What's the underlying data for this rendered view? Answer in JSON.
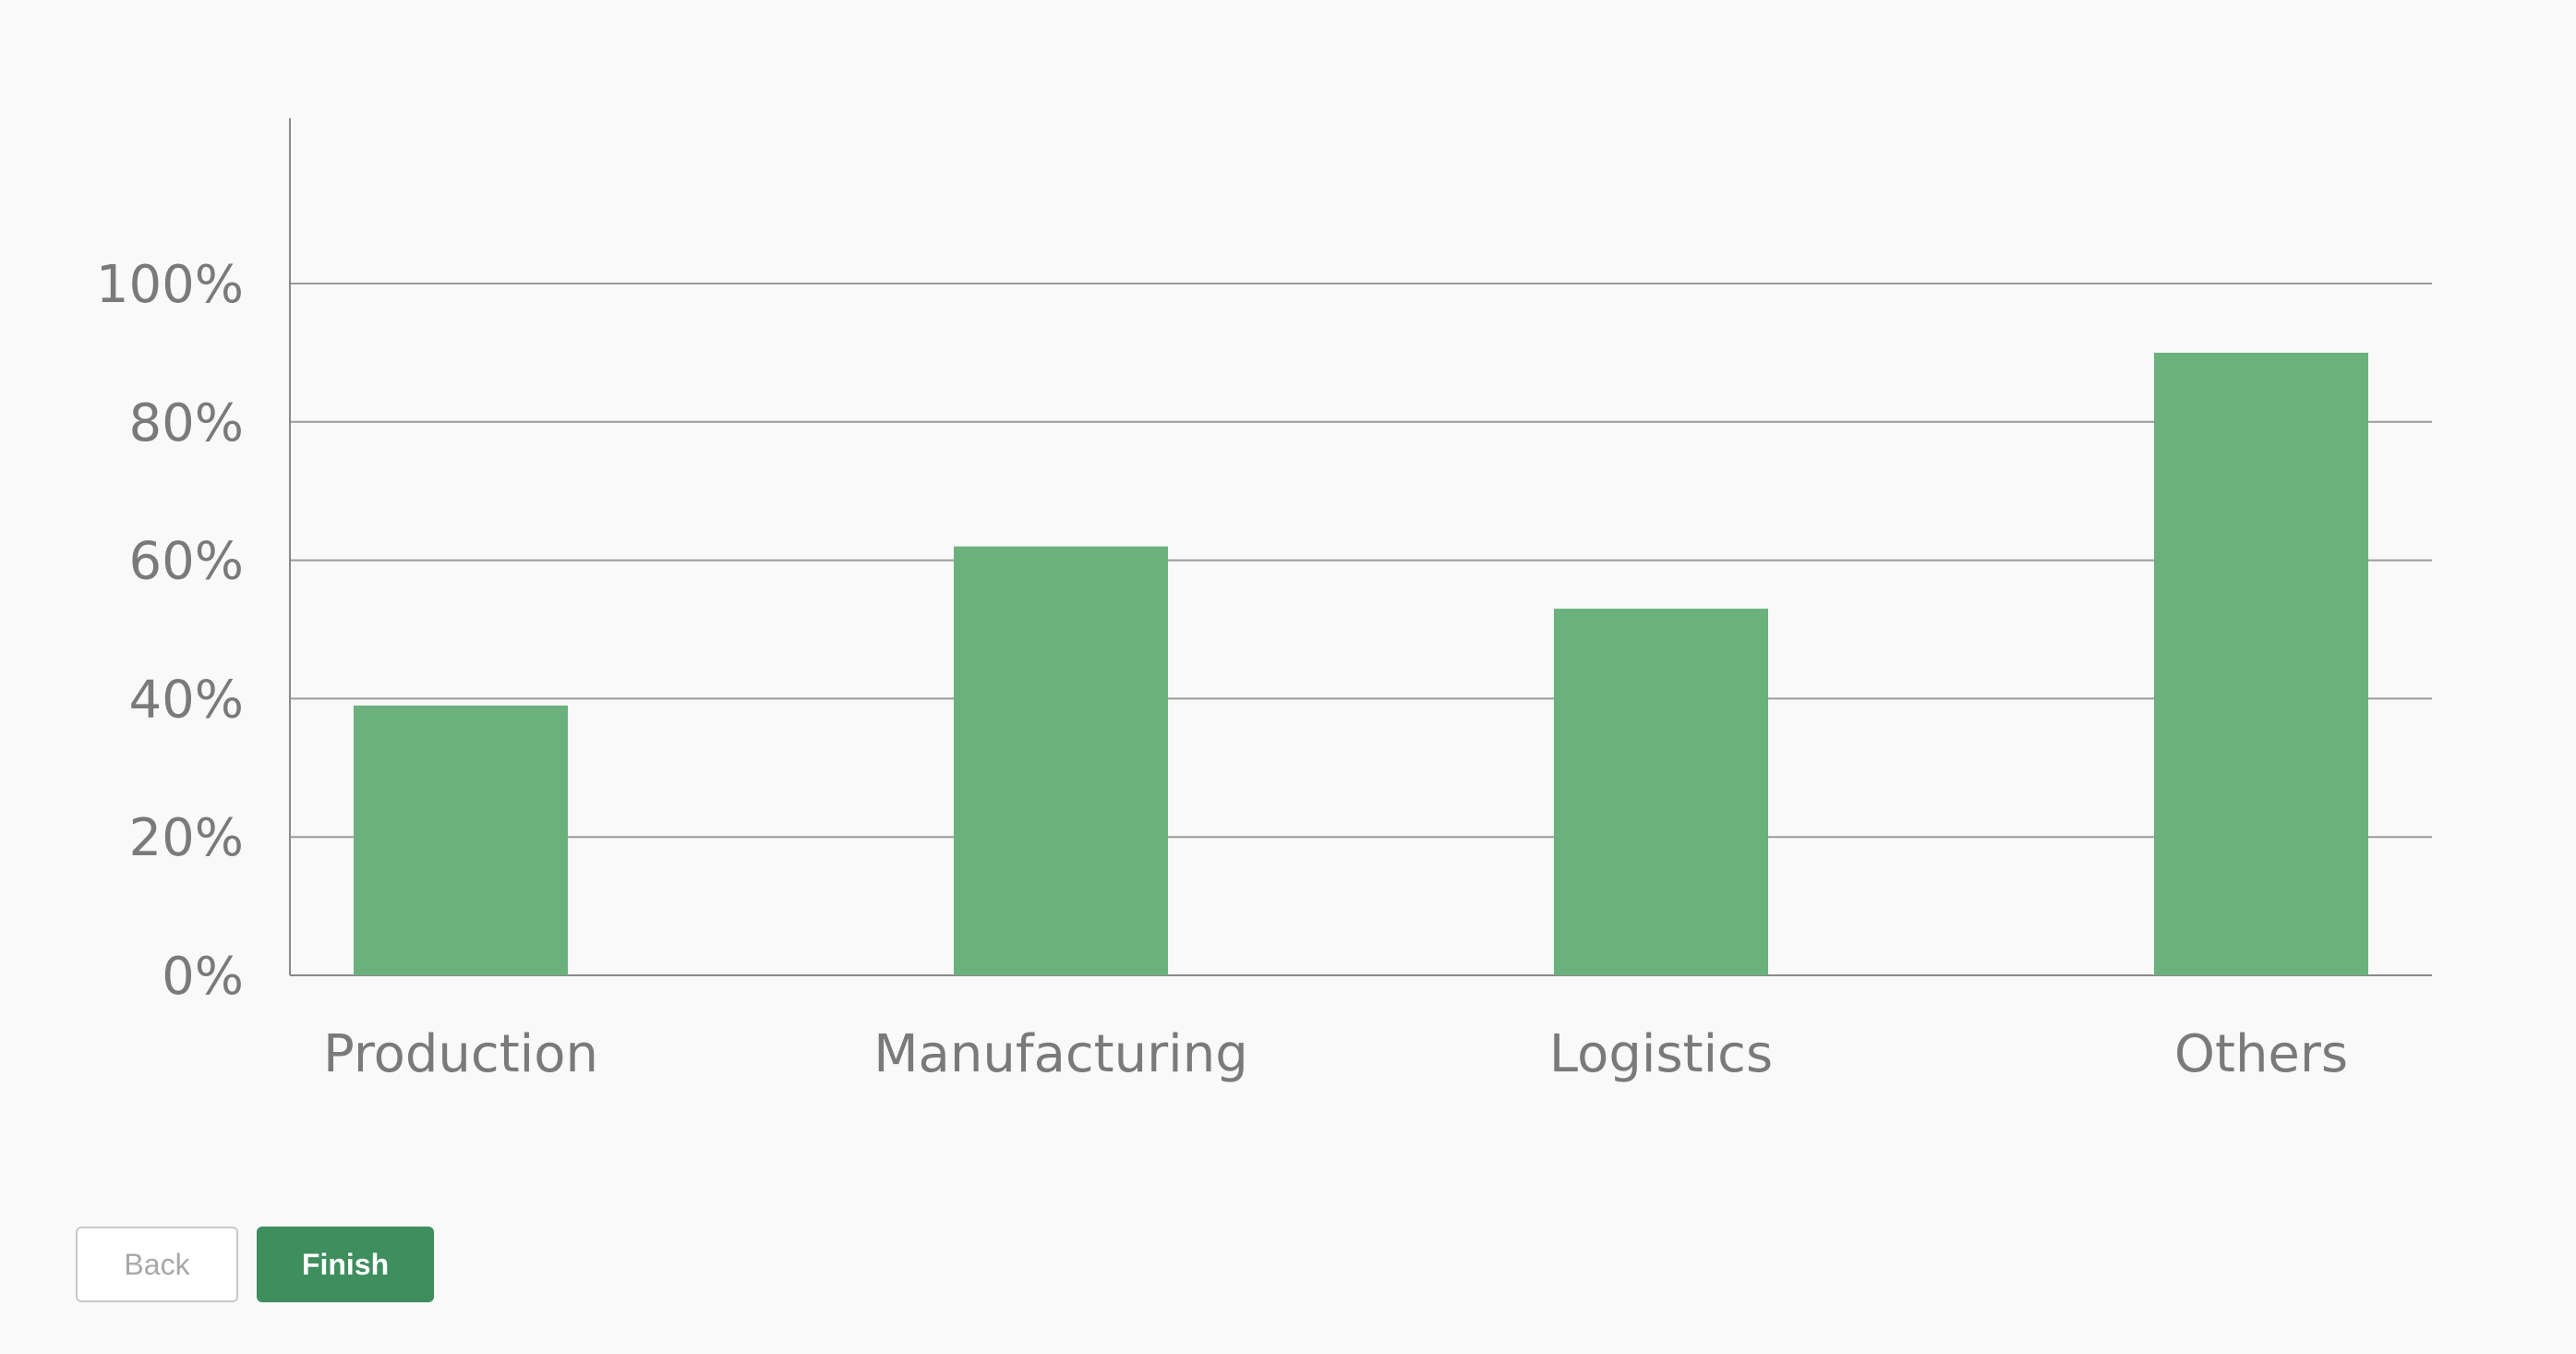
{
  "chart_data": {
    "type": "bar",
    "categories": [
      "Production",
      "Manufacturing",
      "Logistics",
      "Others"
    ],
    "values": [
      39,
      62,
      53,
      90
    ],
    "ylim": [
      0,
      100
    ],
    "yticks": [
      "0%",
      "20%",
      "40%",
      "60%",
      "80%",
      "100%"
    ],
    "grid": true,
    "bar_color": "#6ab17d"
  },
  "buttons": {
    "back_label": "Back",
    "finish_label": "Finish"
  }
}
